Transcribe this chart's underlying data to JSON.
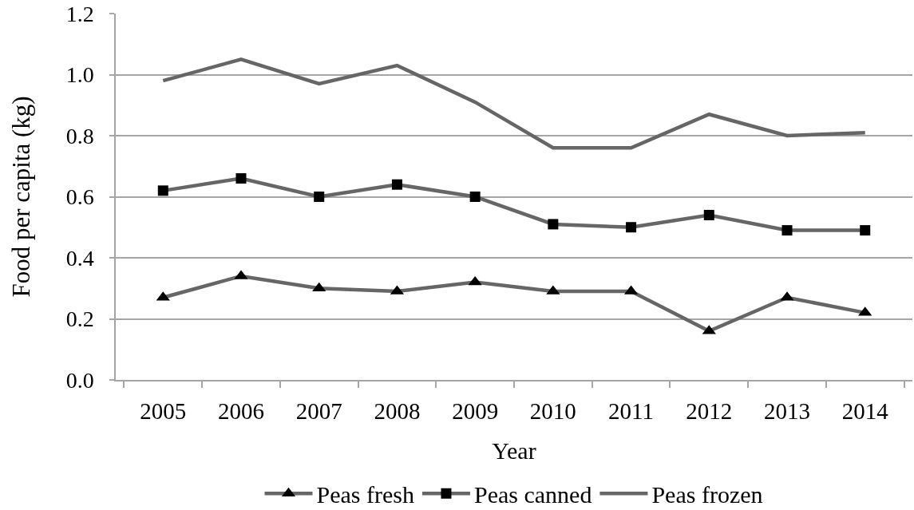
{
  "chart_data": {
    "type": "line",
    "xlabel": "Year",
    "ylabel": "Food per capita (kg)",
    "categories": [
      "2005",
      "2006",
      "2007",
      "2008",
      "2009",
      "2010",
      "2011",
      "2012",
      "2013",
      "2014"
    ],
    "series": [
      {
        "name": "Peas fresh",
        "color": "#666666",
        "marker": "triangle",
        "values": [
          0.27,
          0.34,
          0.3,
          0.29,
          0.32,
          0.29,
          0.29,
          0.16,
          0.27,
          0.22
        ]
      },
      {
        "name": "Peas canned",
        "color": "#666666",
        "marker": "square",
        "values": [
          0.62,
          0.66,
          0.6,
          0.64,
          0.6,
          0.51,
          0.5,
          0.54,
          0.49,
          0.49
        ]
      },
      {
        "name": "Peas frozen",
        "color": "#666666",
        "marker": "none",
        "values": [
          0.98,
          1.05,
          0.97,
          1.03,
          0.91,
          0.76,
          0.76,
          0.87,
          0.8,
          0.81
        ]
      }
    ],
    "ylim": [
      0,
      1.2
    ],
    "yticks": [
      {
        "value": 0,
        "label": "0.0"
      },
      {
        "value": 0.2,
        "label": "0.2"
      },
      {
        "value": 0.4,
        "label": "0.4"
      },
      {
        "value": 0.6,
        "label": "0.6"
      },
      {
        "value": 0.8,
        "label": "0.8"
      },
      {
        "value": 1.0,
        "label": "1.0"
      },
      {
        "value": 1.2,
        "label": "1.2"
      }
    ],
    "grid": "y",
    "legend": "bottom",
    "line_style": "solid"
  }
}
